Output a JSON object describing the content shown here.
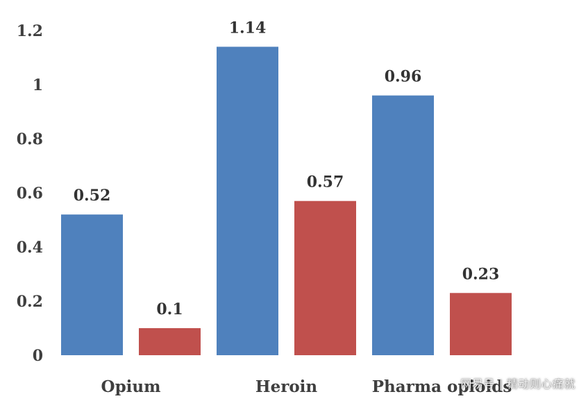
{
  "chart_data": {
    "type": "bar",
    "categories": [
      "Opium",
      "Heroin",
      "Pharma opioids"
    ],
    "series": [
      {
        "values": [
          0.52,
          1.14,
          0.96
        ],
        "color": "#4f81bd"
      },
      {
        "values": [
          0.1,
          0.57,
          0.23
        ],
        "color": "#c0504d"
      }
    ],
    "ylim": [
      0,
      1.2
    ],
    "yticks": [
      "0",
      "0.2",
      "0.4",
      "0.6",
      "0.8",
      "1",
      "1.2"
    ],
    "data_labels": [
      [
        "0.52",
        "1.14",
        "0.96"
      ],
      [
        "0.1",
        "0.57",
        "0.23"
      ]
    ],
    "grid": false,
    "legend": "none",
    "title": "",
    "xlabel": "",
    "ylabel": ""
  },
  "watermark": "网易号 | 精动则心痛就"
}
